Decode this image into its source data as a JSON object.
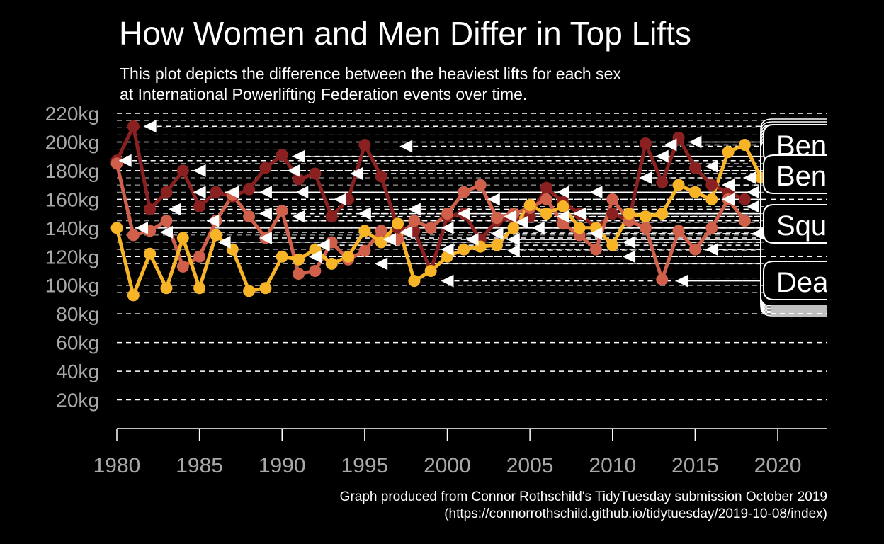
{
  "title": "How Women and Men Differ in Top Lifts",
  "subtitle_lines": [
    "This plot depicts the difference between the heaviest lifts for each sex",
    "at International Powerlifting Federation events over time."
  ],
  "caption_lines": [
    "Graph produced from Connor Rothschild's TidyTuesday submission October 2019",
    "(https://connorrothschild.github.io/tidytuesday/2019-10-08/index)"
  ],
  "colors": {
    "background": "#000000",
    "bench": "#8b2020",
    "squat": "#d0604a",
    "deadlift": "#f6b426",
    "grid": "#ffffff",
    "tick_text": "#a8a8a8",
    "arrow": "#ffffff"
  },
  "chart_data": {
    "type": "line",
    "title": "How Women and Men Differ in Top Lifts",
    "xlabel": "",
    "ylabel": "",
    "xlim": [
      1980,
      2023
    ],
    "ylim": [
      0,
      220
    ],
    "x_ticks": [
      "1980",
      "1985",
      "1990",
      "1995",
      "2000",
      "2005",
      "2010",
      "2015",
      "2020"
    ],
    "y_ticks": [
      "20kg",
      "40kg",
      "60kg",
      "80kg",
      "100kg",
      "120kg",
      "140kg",
      "160kg",
      "180kg",
      "200kg",
      "220kg"
    ],
    "grid": "horizontal dashed",
    "legend": "labels at right edge (cropped)",
    "label_texts": [
      "Ben",
      "Ben",
      "Squ",
      "Dea"
    ],
    "series": [
      {
        "lift": "bench",
        "color": "#8b2020",
        "x": [
          1980,
          1981,
          1982,
          1983,
          1984,
          1985,
          1986,
          1987,
          1988,
          1989,
          1990,
          1991,
          1992,
          1993,
          1994,
          1995,
          1996,
          1997,
          1998,
          1999,
          2000,
          2001,
          2002,
          2003,
          2004,
          2005,
          2006,
          2007,
          2008,
          2009,
          2010,
          2011,
          2012,
          2013,
          2014,
          2015,
          2016,
          2017,
          2018
        ],
        "y": [
          187,
          211,
          153,
          165,
          180,
          155,
          165,
          162,
          167,
          182,
          191,
          174,
          178,
          148,
          160,
          198,
          176,
          140,
          138,
          110,
          148,
          150,
          132,
          145,
          147,
          148,
          168,
          158,
          150,
          140,
          150,
          145,
          199,
          172,
          203,
          182,
          170,
          165,
          160
        ]
      },
      {
        "lift": "squat",
        "color": "#d0604a",
        "x": [
          1980,
          1981,
          1982,
          1983,
          1984,
          1985,
          1986,
          1987,
          1988,
          1989,
          1990,
          1991,
          1992,
          1993,
          1994,
          1995,
          1996,
          1997,
          1998,
          1999,
          2000,
          2001,
          2002,
          2003,
          2004,
          2005,
          2006,
          2007,
          2008,
          2009,
          2010,
          2011,
          2012,
          2013,
          2014,
          2015,
          2016,
          2017,
          2018
        ],
        "y": [
          185,
          135,
          138,
          145,
          113,
          120,
          145,
          163,
          148,
          133,
          152,
          108,
          110,
          130,
          118,
          124,
          138,
          132,
          145,
          140,
          150,
          165,
          170,
          147,
          150,
          154,
          160,
          143,
          135,
          125,
          160,
          145,
          140,
          104,
          138,
          125,
          140,
          160,
          145
        ]
      },
      {
        "lift": "deadlift",
        "color": "#f6b426",
        "x": [
          1980,
          1981,
          1982,
          1983,
          1984,
          1985,
          1986,
          1987,
          1988,
          1989,
          1990,
          1991,
          1992,
          1993,
          1994,
          1995,
          1996,
          1997,
          1998,
          1999,
          2000,
          2001,
          2002,
          2003,
          2004,
          2005,
          2006,
          2007,
          2008,
          2009,
          2010,
          2011,
          2012,
          2013,
          2014,
          2015,
          2016,
          2017,
          2018,
          2019
        ],
        "y": [
          140,
          93,
          122,
          98,
          133,
          98,
          135,
          125,
          96,
          98,
          120,
          118,
          125,
          115,
          120,
          138,
          130,
          143,
          103,
          110,
          120,
          125,
          127,
          128,
          140,
          156,
          150,
          155,
          140,
          140,
          128,
          150,
          148,
          150,
          170,
          165,
          160,
          193,
          198,
          175
        ]
      }
    ],
    "arrow_markers": [
      {
        "x": 1982,
        "y": 211
      },
      {
        "x": 1980.5,
        "y": 187
      },
      {
        "x": 1981.5,
        "y": 140
      },
      {
        "x": 1983.5,
        "y": 153
      },
      {
        "x": 1983,
        "y": 137
      },
      {
        "x": 1985,
        "y": 165
      },
      {
        "x": 1985,
        "y": 180
      },
      {
        "x": 1985.8,
        "y": 145
      },
      {
        "x": 1986.5,
        "y": 130
      },
      {
        "x": 1987,
        "y": 165
      },
      {
        "x": 1989,
        "y": 165
      },
      {
        "x": 1989,
        "y": 150
      },
      {
        "x": 1989,
        "y": 133
      },
      {
        "x": 1990.7,
        "y": 180
      },
      {
        "x": 1991,
        "y": 190
      },
      {
        "x": 1991.2,
        "y": 165
      },
      {
        "x": 1991,
        "y": 148
      },
      {
        "x": 1992,
        "y": 120
      },
      {
        "x": 1992.5,
        "y": 128
      },
      {
        "x": 1993.5,
        "y": 160
      },
      {
        "x": 1994.5,
        "y": 178
      },
      {
        "x": 1995,
        "y": 150
      },
      {
        "x": 1996,
        "y": 115
      },
      {
        "x": 1996.5,
        "y": 132
      },
      {
        "x": 1997.5,
        "y": 197
      },
      {
        "x": 1997.5,
        "y": 137
      },
      {
        "x": 1998,
        "y": 153
      },
      {
        "x": 2000,
        "y": 140
      },
      {
        "x": 2000,
        "y": 103
      },
      {
        "x": 2000,
        "y": 125
      },
      {
        "x": 2001,
        "y": 150
      },
      {
        "x": 2001.5,
        "y": 132
      },
      {
        "x": 2002.8,
        "y": 160
      },
      {
        "x": 2003,
        "y": 136
      },
      {
        "x": 2003.8,
        "y": 148
      },
      {
        "x": 2004,
        "y": 132
      },
      {
        "x": 2004,
        "y": 124
      },
      {
        "x": 2004.5,
        "y": 144
      },
      {
        "x": 2005.5,
        "y": 140
      },
      {
        "x": 2007,
        "y": 165
      },
      {
        "x": 2007,
        "y": 148
      },
      {
        "x": 2008,
        "y": 150
      },
      {
        "x": 2009,
        "y": 165
      },
      {
        "x": 2009,
        "y": 136
      },
      {
        "x": 2011,
        "y": 120
      },
      {
        "x": 2011,
        "y": 130
      },
      {
        "x": 2012,
        "y": 175
      },
      {
        "x": 2013,
        "y": 190
      },
      {
        "x": 2013.5,
        "y": 198
      },
      {
        "x": 2014.2,
        "y": 103
      },
      {
        "x": 2015,
        "y": 200
      },
      {
        "x": 2016,
        "y": 183
      },
      {
        "x": 2016,
        "y": 125
      },
      {
        "x": 2017,
        "y": 170
      },
      {
        "x": 2017,
        "y": 160
      },
      {
        "x": 2018.3,
        "y": 175
      },
      {
        "x": 2018.5,
        "y": 165
      },
      {
        "x": 2018.5,
        "y": 155
      },
      {
        "x": 2018.8,
        "y": 136
      }
    ]
  }
}
